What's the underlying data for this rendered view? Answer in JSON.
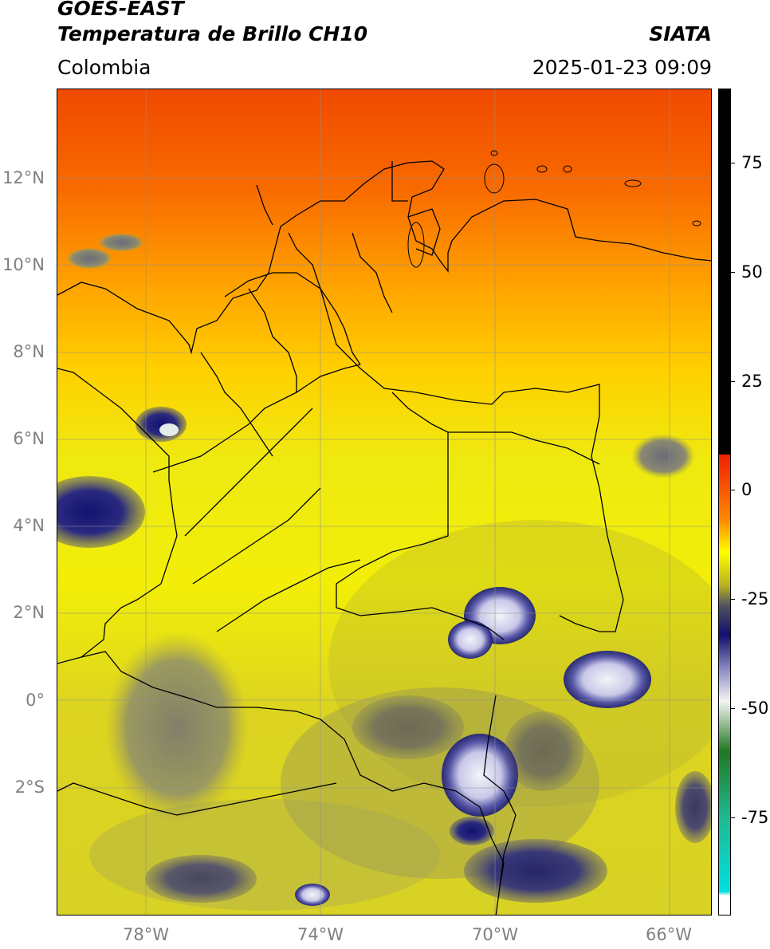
{
  "header": {
    "satellite": "GOES-EAST",
    "product": "Temperatura de Brillo CH10",
    "region": "Colombia",
    "agency": "SIATA",
    "datetime": "2025-01-23 09:09"
  },
  "axes": {
    "y_labels": [
      "12°N",
      "10°N",
      "8°N",
      "6°N",
      "4°N",
      "2°N",
      "0°",
      "2°S"
    ],
    "x_labels": [
      "78°W",
      "74°W",
      "70°W",
      "66°W"
    ]
  },
  "colorbar": {
    "labels": [
      "75",
      "50",
      "25",
      "0",
      "-25",
      "-50",
      "-75"
    ],
    "colors": {
      "black": "#000000",
      "red": "#f02000",
      "orange": "#ff8800",
      "yellow": "#ffff00",
      "olive": "#b8b020",
      "gray": "#505060",
      "navy": "#101070",
      "white": "#f4f4f4",
      "green": "#207820",
      "teal": "#20b890",
      "cyan": "#00e0e0"
    }
  },
  "map_colors": {
    "top": "#f04a00",
    "upper": "#ff9a00",
    "middle": "#f2f000",
    "lower": "#d6cc20",
    "cloud_gray": "#707080",
    "cloud_navy": "#141472",
    "cloud_white": "#e8e8f4"
  }
}
